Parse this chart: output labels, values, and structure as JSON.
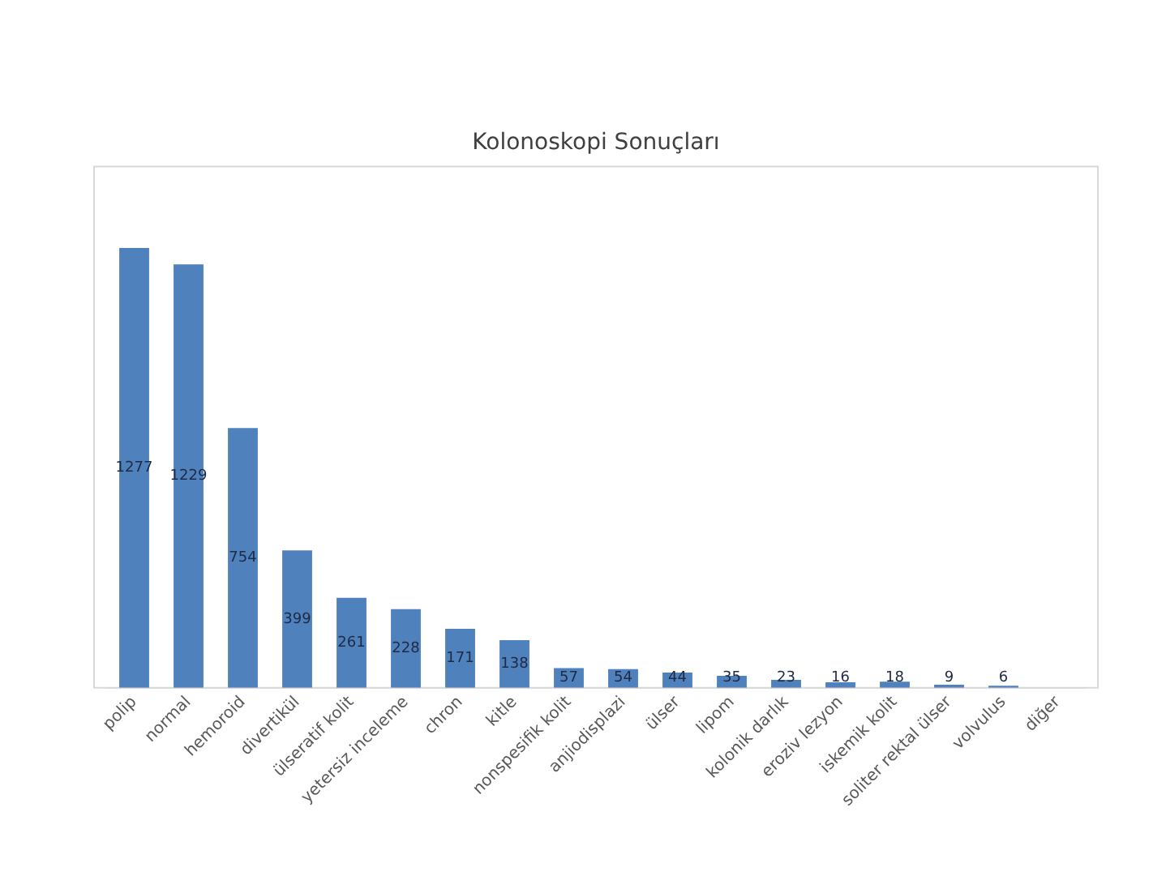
{
  "chart_data": {
    "type": "bar",
    "title": "Kolonoskopi Sonuçları",
    "categories": [
      "polip",
      "normal",
      "hemoroid",
      "divertikül",
      "ülseratif kolit",
      "yetersiz inceleme",
      "chron",
      "kitle",
      "nonspesifik kolit",
      "anjiodisplazi",
      "ülser",
      "lipom",
      "kolonik darlık",
      "eroziv lezyon",
      "iskemik kolit",
      "soliter rektal ülser",
      "volvulus",
      "diğer"
    ],
    "values": [
      1277,
      1229,
      754,
      399,
      261,
      228,
      171,
      138,
      57,
      54,
      44,
      35,
      23,
      16,
      18,
      9,
      6,
      0
    ],
    "value_labels": [
      "1277",
      "1229",
      "754",
      "399",
      "261",
      "228",
      "171",
      "138",
      "57",
      "54",
      "44",
      "35",
      "23",
      "16",
      "18",
      "9",
      "6",
      null
    ],
    "color": "#4f81bd",
    "grid": false,
    "legend": false,
    "tick_labels": "x"
  }
}
